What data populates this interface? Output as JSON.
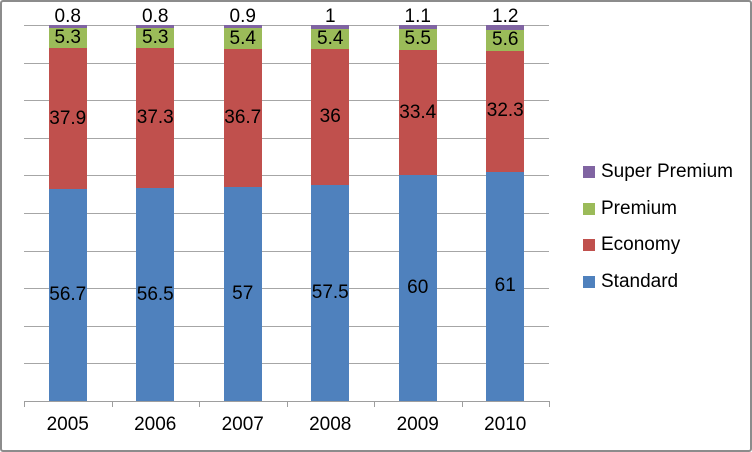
{
  "chart": {
    "kind": "excel-style stacked column chart",
    "background": "#ffffff",
    "border_color": "#8C8C8C",
    "gridline_color": "#A6A6A6",
    "axis_color": "#9E9E9E",
    "label_color": "#000000"
  },
  "chart_data": {
    "type": "bar",
    "stacked": true,
    "title": "",
    "xlabel": "",
    "ylabel": "",
    "ylim": [
      0,
      100
    ],
    "gridline_step": 10,
    "grid": true,
    "data_labels": true,
    "legend_position": "right",
    "categories": [
      "2005",
      "2006",
      "2007",
      "2008",
      "2009",
      "2010"
    ],
    "series": [
      {
        "name": "Standard",
        "color": "#4F81BD",
        "values": [
          56.7,
          56.5,
          57,
          57.5,
          60,
          61
        ],
        "labels": [
          "56.7",
          "56.5",
          "57",
          "57.5",
          "60",
          "61"
        ]
      },
      {
        "name": "Economy",
        "color": "#C0504D",
        "values": [
          37.9,
          37.3,
          36.7,
          36,
          33.4,
          32.3
        ],
        "labels": [
          "37.9",
          "37.3",
          "36.7",
          "36",
          "33.4",
          "32.3"
        ]
      },
      {
        "name": "Premium",
        "color": "#9BBB59",
        "values": [
          5.3,
          5.3,
          5.4,
          5.4,
          5.5,
          5.6
        ],
        "labels": [
          "5.3",
          "5.3",
          "5.4",
          "5.4",
          "5.5",
          "5.6"
        ]
      },
      {
        "name": "Super Premium",
        "color": "#8064A2",
        "values": [
          0.8,
          0.8,
          0.9,
          1,
          1.1,
          1.2
        ],
        "labels": [
          "0.8",
          "0.8",
          "0.9",
          "1",
          "1.1",
          "1.2"
        ]
      }
    ],
    "legend_entries": [
      "Super Premium",
      "Premium",
      "Economy",
      "Standard"
    ]
  }
}
